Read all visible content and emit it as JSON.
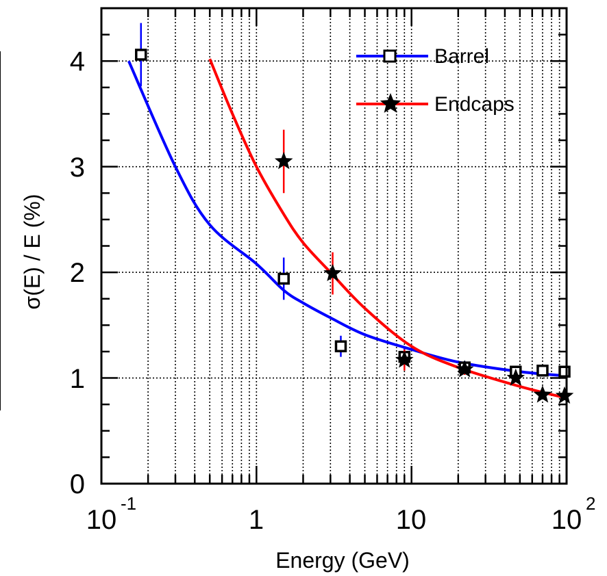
{
  "chart_data": {
    "type": "scatter",
    "xlabel": "Energy (GeV)",
    "ylabel": "σ(E) / E  (%)",
    "xscale": "log",
    "xlim": [
      0.1,
      100
    ],
    "ylim": [
      0,
      4.5
    ],
    "grid": true,
    "legend_position": "top-right",
    "y_ticks": [
      "0",
      "1",
      "2",
      "3",
      "4"
    ],
    "x_ticks": [
      {
        "base": "10",
        "exp": "-1"
      },
      {
        "base": "1",
        "exp": ""
      },
      {
        "base": "10",
        "exp": ""
      },
      {
        "base": "10",
        "exp": "2"
      }
    ],
    "series": [
      {
        "name": "Barrel",
        "color": "#0000ff",
        "marker": "square",
        "points": [
          {
            "x": 0.18,
            "y": 4.06,
            "yerr": 0.3
          },
          {
            "x": 1.5,
            "y": 1.94,
            "yerr": 0.2
          },
          {
            "x": 3.5,
            "y": 1.3,
            "yerr": 0.1
          },
          {
            "x": 9.0,
            "y": 1.2,
            "yerr": 0.1
          },
          {
            "x": 22,
            "y": 1.1,
            "yerr": 0.06
          },
          {
            "x": 47,
            "y": 1.06,
            "yerr": 0.03
          },
          {
            "x": 70,
            "y": 1.07,
            "yerr": 0.03
          },
          {
            "x": 97,
            "y": 1.06,
            "yerr": 0.03
          }
        ],
        "fit": {
          "x": [
            0.15,
            0.3,
            0.5,
            1,
            1.5,
            2,
            3,
            5,
            10,
            20,
            50,
            100
          ],
          "y": [
            4.0,
            3.0,
            2.45,
            2.08,
            1.83,
            1.71,
            1.57,
            1.41,
            1.27,
            1.15,
            1.06,
            1.02
          ]
        }
      },
      {
        "name": "Endcaps",
        "color": "#ff0000",
        "marker": "star",
        "points": [
          {
            "x": 1.5,
            "y": 3.05,
            "yerr": 0.3
          },
          {
            "x": 3.1,
            "y": 1.99,
            "yerr": 0.2
          },
          {
            "x": 9.0,
            "y": 1.17,
            "yerr": 0.1
          },
          {
            "x": 22,
            "y": 1.08,
            "yerr": 0.05
          },
          {
            "x": 47,
            "y": 1.0,
            "yerr": 0.04
          },
          {
            "x": 70,
            "y": 0.84,
            "yerr": 0.03
          },
          {
            "x": 97,
            "y": 0.83,
            "yerr": 0.03
          }
        ],
        "fit": {
          "x": [
            0.5,
            0.7,
            1,
            1.5,
            2,
            3,
            5,
            10,
            20,
            50,
            100
          ],
          "y": [
            4.02,
            3.5,
            3.0,
            2.55,
            2.28,
            2.0,
            1.66,
            1.3,
            1.1,
            0.92,
            0.81
          ]
        }
      }
    ]
  }
}
